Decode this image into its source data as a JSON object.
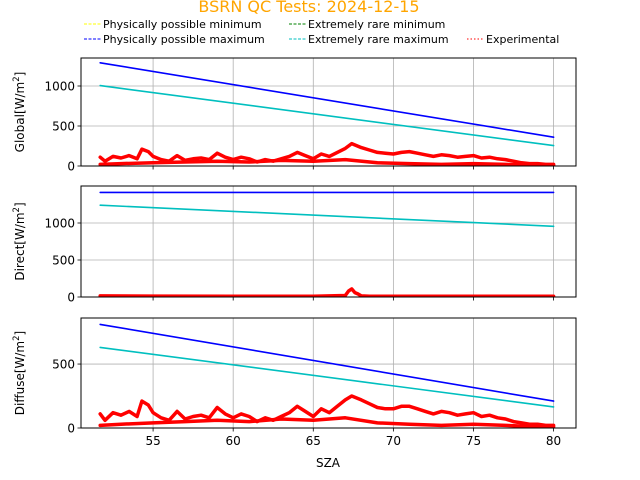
{
  "chart_data": {
    "type": "line",
    "title": "BSRN QC Tests: 2024-12-15",
    "xlabel": "SZA",
    "xlim": [
      50.5,
      81.4
    ],
    "xticks": [
      55,
      60,
      65,
      70,
      75,
      80
    ],
    "grid": true,
    "legend_position": "top (above plots, 3 columns)",
    "legend": [
      {
        "label": "Physically possible minimum",
        "color": "#ffff00",
        "style": "dashed"
      },
      {
        "label": "Physically possible maximum",
        "color": "#0000ff",
        "style": "dashed"
      },
      {
        "label": "Extremely rare minimum",
        "color": "#008000",
        "style": "dashed"
      },
      {
        "label": "Extremely rare maximum",
        "color": "#00bfbf",
        "style": "dashed"
      },
      {
        "label": "Experimental",
        "color": "#ff0000",
        "style": "dotted"
      }
    ],
    "panels": [
      {
        "ylabel_main": "Global[W/m",
        "ylabel_sup": "2",
        "ylabel_end": "]",
        "ylim": [
          0,
          1350
        ],
        "yticks": [
          0,
          500,
          1000
        ],
        "series": [
          {
            "name": "Physically possible maximum",
            "color": "#0000ff",
            "x": [
              51.7,
              80
            ],
            "y": [
              1290,
              360
            ]
          },
          {
            "name": "Extremely rare maximum",
            "color": "#00bfbf",
            "x": [
              51.7,
              80
            ],
            "y": [
              1005,
              255
            ]
          },
          {
            "name": "Extremely rare minimum",
            "color": "#008000",
            "x": [
              51.7,
              80
            ],
            "y": [
              -4,
              -4
            ]
          },
          {
            "name": "Experimental",
            "color": "#ff0000",
            "x": [
              51.7,
              52.0,
              52.5,
              53.0,
              53.5,
              54.0,
              54.3,
              54.7,
              55.0,
              55.5,
              56.0,
              56.5,
              57.0,
              57.5,
              58.0,
              58.5,
              59.0,
              59.5,
              60.0,
              60.5,
              61.0,
              61.5,
              62.0,
              62.5,
              63.0,
              63.5,
              64.0,
              64.5,
              65.0,
              65.5,
              66.0,
              66.5,
              67.0,
              67.4,
              68.0,
              68.5,
              69.0,
              69.5,
              70.0,
              70.5,
              71.0,
              71.5,
              72.0,
              72.5,
              73.0,
              73.5,
              74.0,
              74.5,
              75.0,
              75.5,
              76.0,
              76.5,
              77.0,
              77.5,
              78.0,
              78.5,
              79.0,
              79.5,
              80.0
            ],
            "y": [
              110,
              60,
              120,
              100,
              130,
              90,
              210,
              180,
              120,
              80,
              60,
              130,
              70,
              90,
              100,
              80,
              160,
              110,
              80,
              110,
              90,
              50,
              80,
              60,
              90,
              120,
              170,
              130,
              90,
              150,
              120,
              170,
              220,
              280,
              230,
              200,
              170,
              160,
              150,
              170,
              180,
              160,
              140,
              120,
              140,
              130,
              110,
              120,
              130,
              100,
              110,
              90,
              80,
              60,
              40,
              30,
              30,
              20,
              20
            ]
          },
          {
            "name": "Experimental (low branch)",
            "color": "#ff0000",
            "x": [
              51.7,
              53.0,
              55.0,
              57.0,
              59.0,
              61.0,
              63.0,
              65.0,
              67.0,
              69.0,
              71.0,
              73.0,
              75.0,
              77.0,
              79.0,
              80.0
            ],
            "y": [
              20,
              30,
              40,
              50,
              60,
              50,
              70,
              60,
              80,
              40,
              30,
              20,
              30,
              20,
              10,
              10
            ]
          }
        ]
      },
      {
        "ylabel_main": "Direct[W/m",
        "ylabel_sup": "2",
        "ylabel_end": "]",
        "ylim": [
          0,
          1500
        ],
        "yticks": [
          0,
          500,
          1000
        ],
        "series": [
          {
            "name": "Physically possible maximum",
            "color": "#0000ff",
            "x": [
              51.7,
              80
            ],
            "y": [
              1413,
              1413
            ]
          },
          {
            "name": "Extremely rare maximum",
            "color": "#00bfbf",
            "x": [
              51.7,
              80
            ],
            "y": [
              1240,
              955
            ]
          },
          {
            "name": "Extremely rare minimum",
            "color": "#008000",
            "x": [
              51.7,
              80
            ],
            "y": [
              -4,
              -4
            ]
          },
          {
            "name": "Experimental",
            "color": "#ff0000",
            "x": [
              51.7,
              55,
              60,
              65,
              67.0,
              67.2,
              67.4,
              67.6,
              67.8,
              68.0,
              68.5,
              70,
              75,
              80
            ],
            "y": [
              15,
              12,
              10,
              10,
              20,
              80,
              110,
              60,
              40,
              15,
              10,
              10,
              10,
              10
            ]
          }
        ]
      },
      {
        "ylabel_main": "Diffuse[W/m",
        "ylabel_sup": "2",
        "ylabel_end": "]",
        "ylim": [
          0,
          860
        ],
        "yticks": [
          0,
          500
        ],
        "series": [
          {
            "name": "Physically possible maximum",
            "color": "#0000ff",
            "x": [
              51.7,
              80
            ],
            "y": [
              810,
              210
            ]
          },
          {
            "name": "Extremely rare maximum",
            "color": "#00bfbf",
            "x": [
              51.7,
              80
            ],
            "y": [
              630,
              165
            ]
          },
          {
            "name": "Extremely rare minimum",
            "color": "#008000",
            "x": [
              51.7,
              80
            ],
            "y": [
              -3,
              -3
            ]
          },
          {
            "name": "Experimental",
            "color": "#ff0000",
            "x": [
              51.7,
              52.0,
              52.5,
              53.0,
              53.5,
              54.0,
              54.3,
              54.7,
              55.0,
              55.5,
              56.0,
              56.5,
              57.0,
              57.5,
              58.0,
              58.5,
              59.0,
              59.5,
              60.0,
              60.5,
              61.0,
              61.5,
              62.0,
              62.5,
              63.0,
              63.5,
              64.0,
              64.5,
              65.0,
              65.5,
              66.0,
              66.5,
              67.0,
              67.4,
              68.0,
              68.5,
              69.0,
              69.5,
              70.0,
              70.5,
              71.0,
              71.5,
              72.0,
              72.5,
              73.0,
              73.5,
              74.0,
              74.5,
              75.0,
              75.5,
              76.0,
              76.5,
              77.0,
              77.5,
              78.0,
              78.5,
              79.0,
              79.5,
              80.0
            ],
            "y": [
              110,
              60,
              120,
              100,
              130,
              90,
              210,
              180,
              120,
              80,
              60,
              130,
              70,
              90,
              100,
              80,
              160,
              110,
              80,
              110,
              90,
              50,
              80,
              60,
              90,
              120,
              170,
              130,
              90,
              150,
              120,
              170,
              220,
              250,
              220,
              190,
              160,
              150,
              150,
              170,
              170,
              150,
              130,
              110,
              130,
              120,
              100,
              110,
              120,
              90,
              100,
              80,
              70,
              50,
              40,
              30,
              30,
              20,
              20
            ]
          },
          {
            "name": "Experimental (low branch)",
            "color": "#ff0000",
            "x": [
              51.7,
              53.0,
              55.0,
              57.0,
              59.0,
              61.0,
              63.0,
              65.0,
              67.0,
              69.0,
              71.0,
              73.0,
              75.0,
              77.0,
              79.0,
              80.0
            ],
            "y": [
              20,
              30,
              40,
              50,
              60,
              50,
              70,
              60,
              80,
              40,
              30,
              20,
              30,
              20,
              10,
              10
            ]
          }
        ]
      }
    ]
  }
}
